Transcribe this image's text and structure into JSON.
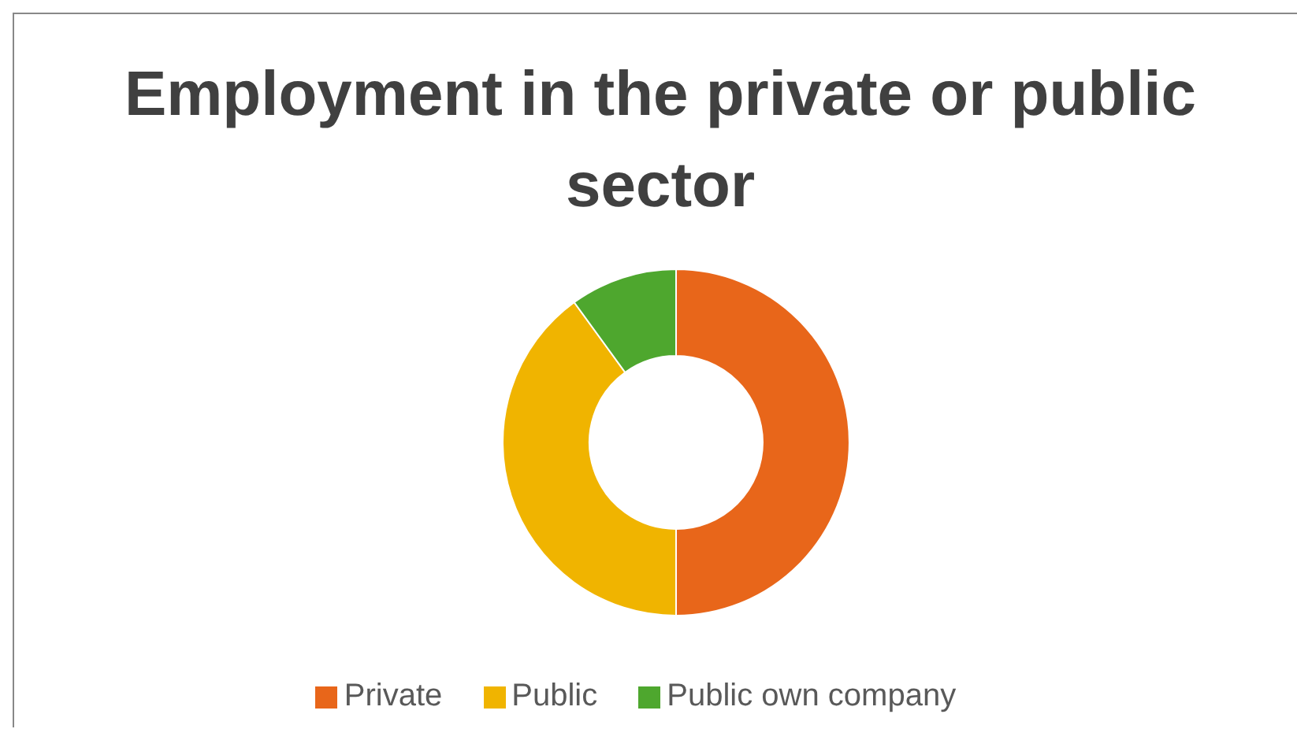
{
  "chart_data": {
    "type": "donut",
    "title": "Employment in the private or public sector",
    "categories": [
      "Private",
      "Public",
      "Public own company"
    ],
    "values": [
      50,
      40,
      10
    ],
    "colors": [
      "#e8661a",
      "#f0b400",
      "#4ea72e"
    ],
    "legend": "bottom"
  }
}
